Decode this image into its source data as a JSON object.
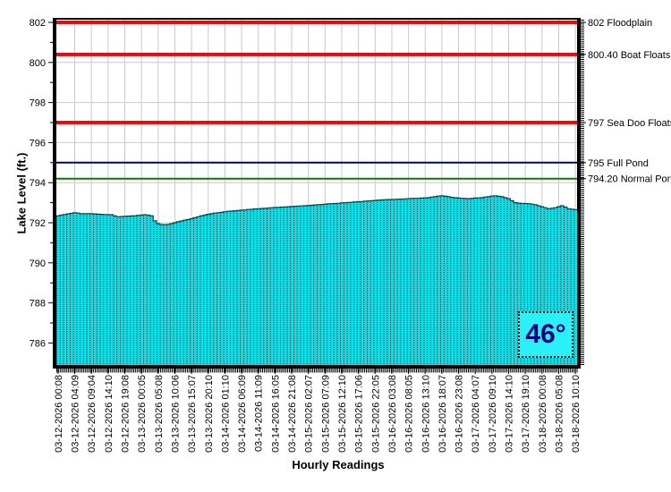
{
  "chart_data": {
    "type": "bar",
    "title": "",
    "xlabel": "Hourly Readings",
    "ylabel": "Lake Level (ft.)",
    "ylim": [
      784.9,
      802.13
    ],
    "grid": true,
    "legend": false,
    "y_ticks": [
      786,
      788,
      790,
      792,
      794,
      796,
      798,
      800,
      802
    ],
    "label_every_n": 5,
    "x_tick_labels": [
      "03-12-2026 00:08",
      "03-12-2026 04:09",
      "03-12-2026 09:04",
      "03-12-2026 14:10",
      "03-12-2026 19:08",
      "03-13-2026 00:05",
      "03-13-2026 05:08",
      "03-13-2026 10:06",
      "03-13-2026 15:07",
      "03-13-2026 20:10",
      "03-14-2026 01:10",
      "03-14-2026 06:09",
      "03-14-2026 11:09",
      "03-14-2026 16:05",
      "03-14-2026 21:08",
      "03-15-2026 02:07",
      "03-15-2026 07:09",
      "03-15-2026 12:10",
      "03-15-2026 17:06",
      "03-15-2026 22:05",
      "03-16-2026 03:08",
      "03-16-2026 08:05",
      "03-16-2026 13:10",
      "03-16-2026 18:07",
      "03-16-2026 23:08",
      "03-17-2026 04:07",
      "03-17-2026 09:10",
      "03-17-2026 14:10",
      "03-17-2026 19:10",
      "03-18-2026 00:08",
      "03-18-2026 05:08",
      "03-18-2026 10:10"
    ],
    "series": [
      {
        "name": "Lake Level",
        "color": "#00e5ee",
        "dot_color": "#0d3f46",
        "values": [
          792.35,
          792.38,
          792.41,
          792.44,
          792.47,
          792.5,
          792.48,
          792.45,
          792.45,
          792.45,
          792.45,
          792.44,
          792.43,
          792.42,
          792.41,
          792.4,
          792.4,
          792.35,
          792.3,
          792.31,
          792.32,
          792.33,
          792.34,
          792.35,
          792.37,
          792.38,
          792.4,
          792.38,
          792.35,
          792.1,
          791.95,
          791.92,
          791.9,
          791.92,
          791.95,
          792.0,
          792.05,
          792.09,
          792.13,
          792.16,
          792.2,
          792.25,
          792.3,
          792.35,
          792.38,
          792.42,
          792.45,
          792.48,
          792.5,
          792.52,
          792.55,
          792.57,
          792.58,
          792.6,
          792.61,
          792.63,
          792.64,
          792.66,
          792.67,
          792.69,
          792.7,
          792.71,
          792.72,
          792.73,
          792.75,
          792.76,
          792.77,
          792.78,
          792.79,
          792.8,
          792.81,
          792.82,
          792.83,
          792.84,
          792.85,
          792.86,
          792.87,
          792.89,
          792.9,
          792.91,
          792.92,
          792.94,
          792.95,
          792.96,
          792.97,
          792.99,
          793.0,
          793.01,
          793.02,
          793.04,
          793.05,
          793.06,
          793.08,
          793.09,
          793.1,
          793.11,
          793.13,
          793.14,
          793.15,
          793.16,
          793.16,
          793.17,
          793.18,
          793.18,
          793.19,
          793.2,
          793.21,
          793.22,
          793.22,
          793.23,
          793.24,
          793.25,
          793.28,
          793.3,
          793.33,
          793.35,
          793.32,
          793.3,
          793.27,
          793.25,
          793.23,
          793.22,
          793.21,
          793.2,
          793.21,
          793.23,
          793.24,
          793.25,
          793.28,
          793.3,
          793.33,
          793.35,
          793.32,
          793.3,
          793.25,
          793.2,
          793.1,
          793.0,
          792.98,
          792.97,
          792.96,
          792.95,
          792.93,
          792.9,
          792.85,
          792.8,
          792.75,
          792.7,
          792.72,
          792.75,
          792.8,
          792.85,
          792.78,
          792.7,
          792.68,
          792.65
        ]
      }
    ],
    "reference_lines": [
      {
        "value": 802.0,
        "label": "802 Floodplain",
        "color": "#ff0000",
        "width": 4
      },
      {
        "value": 800.4,
        "label": "800.40 Boat Floats",
        "color": "#ff0000",
        "width": 4
      },
      {
        "value": 797.0,
        "label": "797 Sea Doo Floats",
        "color": "#ff0000",
        "width": 4
      },
      {
        "value": 795.0,
        "label": "795 Full Pond",
        "color": "#000080",
        "width": 2
      },
      {
        "value": 794.2,
        "label": "794.20 Normal Pond",
        "color": "#008000",
        "width": 2
      }
    ],
    "grid_color": "#c9c9c9",
    "axis_color": "#000000"
  },
  "temperature": {
    "value": "46°",
    "color": "#000080"
  }
}
